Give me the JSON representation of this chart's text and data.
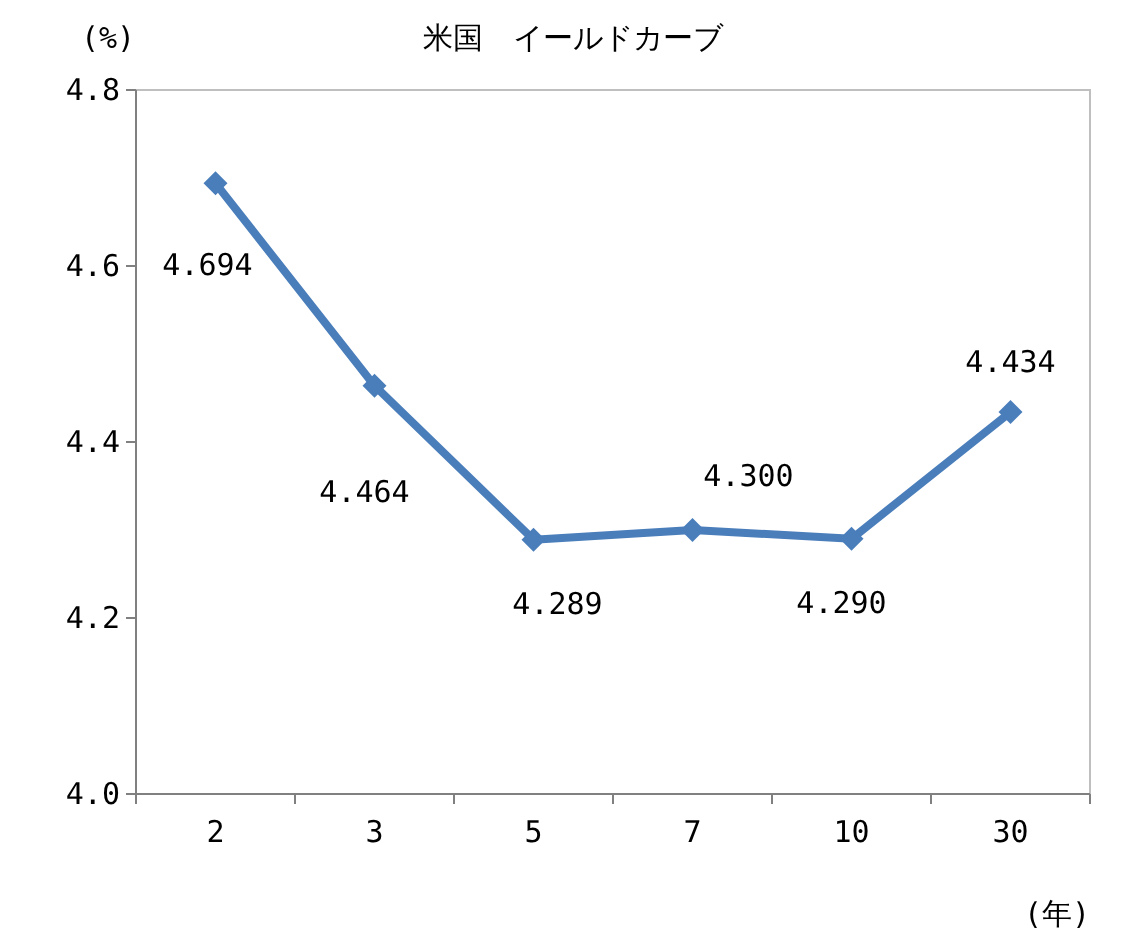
{
  "chart_data": {
    "type": "line",
    "title": "米国　イールドカーブ",
    "ylabel": "(%)",
    "xlabel": "(年)",
    "categories": [
      "2",
      "3",
      "5",
      "7",
      "10",
      "30"
    ],
    "series": [
      {
        "color": "#4a7ebb",
        "values": [
          4.694,
          4.464,
          4.289,
          4.3,
          4.29,
          4.434
        ],
        "value_labels": [
          "4.694",
          "4.464",
          "4.289",
          "4.300",
          "4.290",
          "4.434"
        ]
      }
    ],
    "ylim": [
      4.0,
      4.8
    ],
    "yticks": [
      {
        "value": 4.0,
        "label": "4.0"
      },
      {
        "value": 4.2,
        "label": "4.2"
      },
      {
        "value": 4.4,
        "label": "4.4"
      },
      {
        "value": 4.6,
        "label": "4.6"
      },
      {
        "value": 4.8,
        "label": "4.8"
      }
    ],
    "marker": "diamond",
    "line_style": "solid",
    "grid": false
  }
}
